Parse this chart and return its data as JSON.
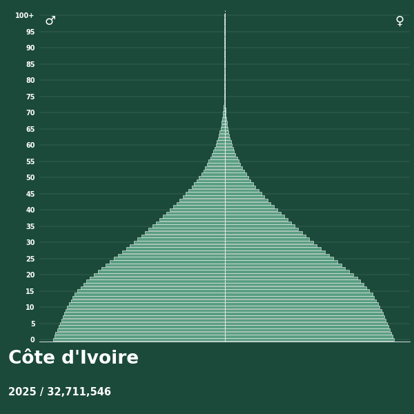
{
  "title": "Côte d'Ivoire",
  "subtitle": "2025 / 32,711,546",
  "bg_color": "#1b4a3a",
  "bar_color": "#5a9e82",
  "bar_edge_color": "#ffffff",
  "male_symbol": "♂",
  "female_symbol": "♀",
  "ages": [
    0,
    1,
    2,
    3,
    4,
    5,
    6,
    7,
    8,
    9,
    10,
    11,
    12,
    13,
    14,
    15,
    16,
    17,
    18,
    19,
    20,
    21,
    22,
    23,
    24,
    25,
    26,
    27,
    28,
    29,
    30,
    31,
    32,
    33,
    34,
    35,
    36,
    37,
    38,
    39,
    40,
    41,
    42,
    43,
    44,
    45,
    46,
    47,
    48,
    49,
    50,
    51,
    52,
    53,
    54,
    55,
    56,
    57,
    58,
    59,
    60,
    61,
    62,
    63,
    64,
    65,
    66,
    67,
    68,
    69,
    70,
    71,
    72,
    73,
    74,
    75,
    76,
    77,
    78,
    79,
    80,
    81,
    82,
    83,
    84,
    85,
    86,
    87,
    88,
    89,
    90,
    91,
    92,
    93,
    94,
    95,
    96,
    97,
    98,
    99,
    100
  ],
  "male": [
    740000,
    735000,
    730000,
    724000,
    718000,
    712000,
    706000,
    700000,
    694000,
    688000,
    680000,
    672000,
    664000,
    656000,
    648000,
    635000,
    622000,
    609000,
    596000,
    583000,
    565000,
    548000,
    531000,
    514000,
    497000,
    478000,
    460000,
    443000,
    426000,
    409000,
    392000,
    376000,
    360000,
    344000,
    328000,
    312000,
    297000,
    282000,
    267000,
    252000,
    237000,
    222000,
    208000,
    194000,
    180000,
    167000,
    155000,
    143000,
    132000,
    121000,
    111000,
    101000,
    92000,
    84000,
    76000,
    69000,
    62000,
    55000,
    49000,
    44000,
    38000,
    33000,
    29000,
    25000,
    21000,
    17500,
    14500,
    12000,
    9800,
    7900,
    6300,
    4900,
    3800,
    2900,
    2200,
    1650,
    1200,
    880,
    640,
    460,
    320,
    220,
    150,
    100,
    65,
    42,
    27,
    17,
    11,
    7,
    4,
    2.5,
    1.5,
    0.9,
    0.5,
    0.3,
    0.15,
    0.08,
    0.04,
    0.02,
    0.01
  ],
  "female": [
    730000,
    725000,
    720000,
    714000,
    708000,
    702000,
    696000,
    690000,
    684000,
    678000,
    670000,
    662000,
    654000,
    646000,
    638000,
    625000,
    612000,
    599000,
    586000,
    573000,
    555000,
    538000,
    521000,
    504000,
    487000,
    468000,
    450000,
    433000,
    416000,
    399000,
    382000,
    366000,
    350000,
    334000,
    318000,
    303000,
    288000,
    273000,
    258000,
    243000,
    228000,
    213000,
    199000,
    185000,
    171000,
    158000,
    146000,
    134000,
    123000,
    112000,
    102000,
    92500,
    83500,
    75000,
    67500,
    60500,
    54000,
    47500,
    41500,
    36500,
    31500,
    27000,
    23000,
    19500,
    16500,
    13500,
    11000,
    9000,
    7200,
    5700,
    4400,
    3400,
    2600,
    1950,
    1450,
    1050,
    760,
    540,
    380,
    265,
    180,
    125,
    84,
    56,
    37,
    24,
    15,
    10,
    6.5,
    4,
    2.5,
    1.5,
    0.9,
    0.5,
    0.3,
    0.18,
    0.1,
    0.05,
    0.03,
    0.01,
    0.01
  ],
  "xlim": 800000,
  "dpi": 100
}
